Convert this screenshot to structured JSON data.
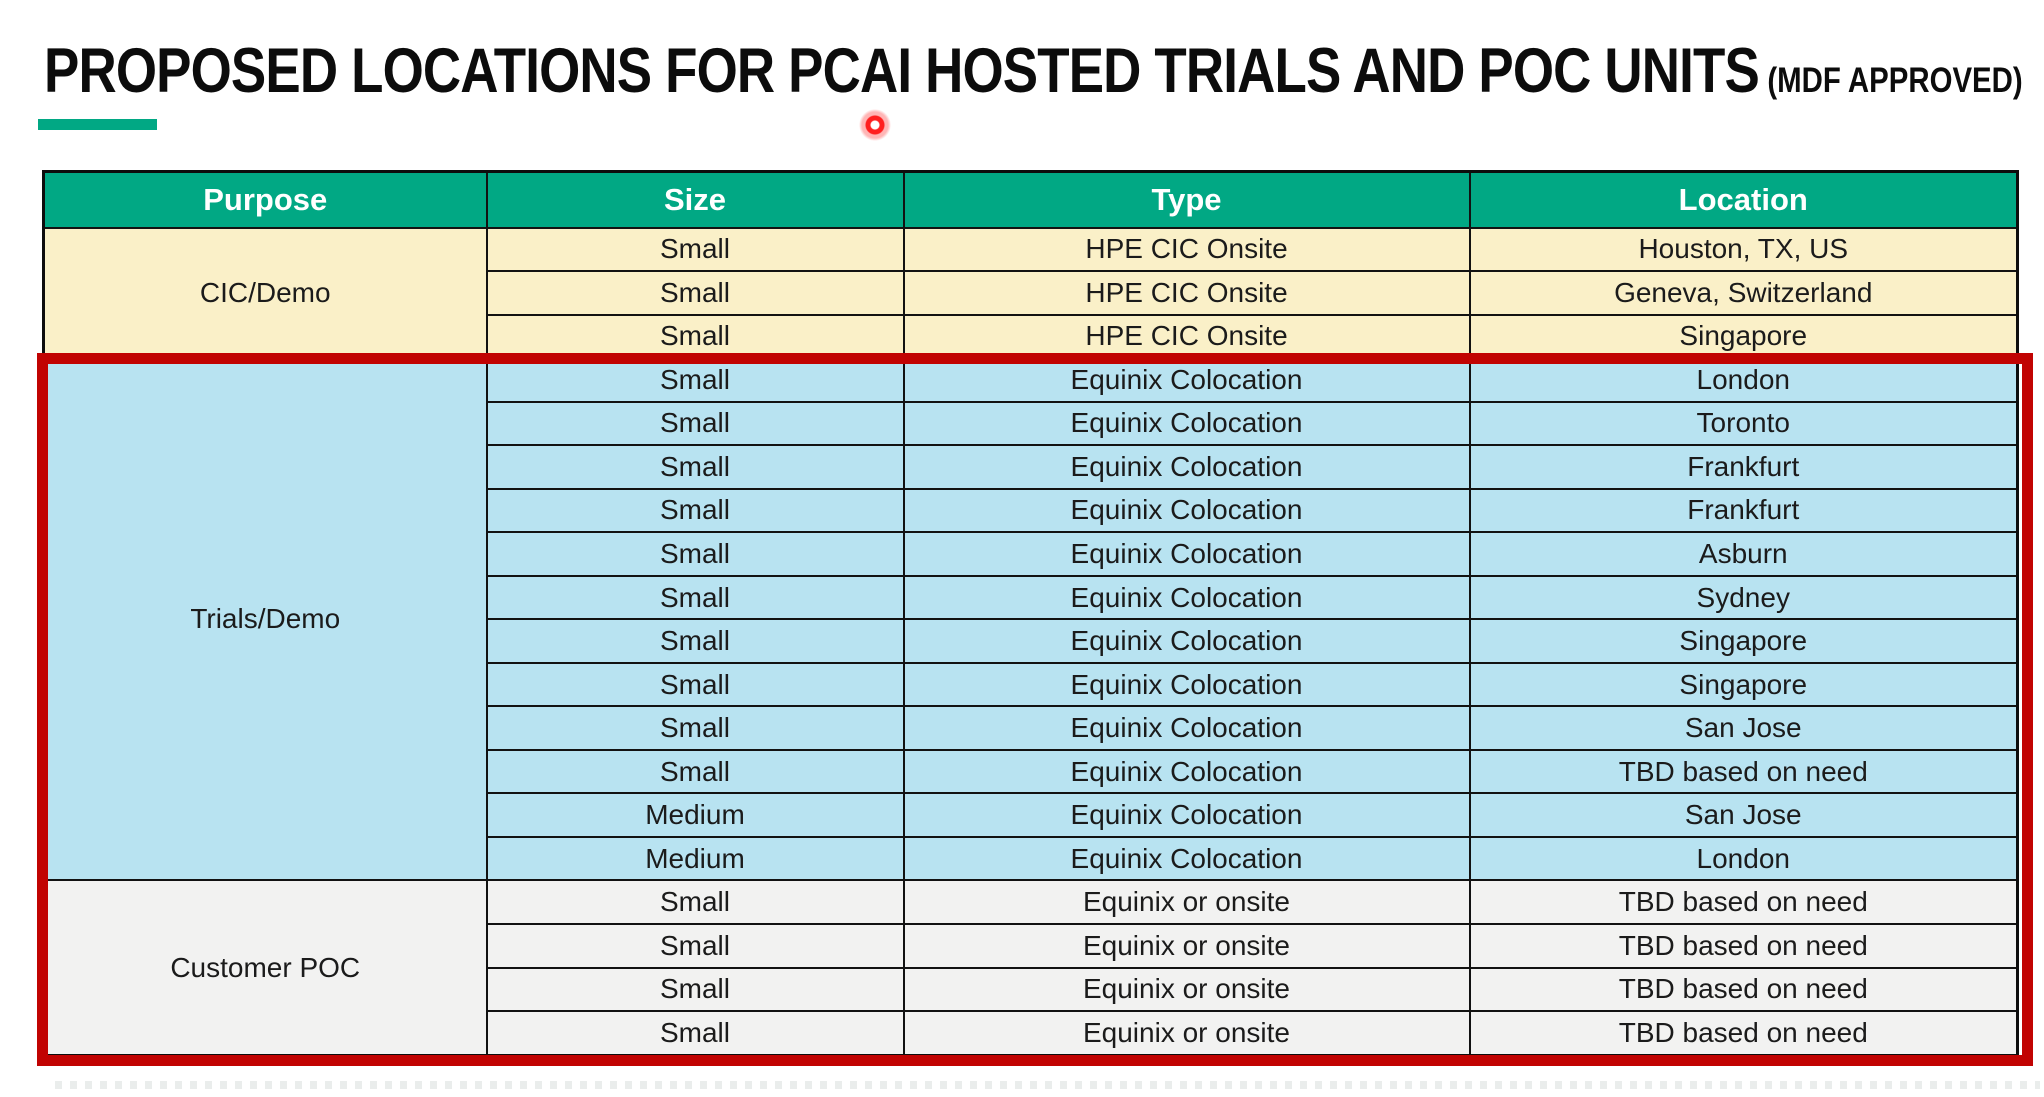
{
  "title": {
    "main": "PROPOSED LOCATIONS FOR PCAI HOSTED TRIALS AND POC UNITS",
    "suffix": "(MDF APPROVED)"
  },
  "table": {
    "headers": [
      "Purpose",
      "Size",
      "Type",
      "Location"
    ],
    "sections": [
      {
        "purpose": "CIC/Demo",
        "theme": "yellow",
        "rows": [
          [
            "Small",
            "HPE CIC Onsite",
            "Houston, TX, US"
          ],
          [
            "Small",
            "HPE CIC Onsite",
            "Geneva, Switzerland"
          ],
          [
            "Small",
            "HPE CIC Onsite",
            "Singapore"
          ]
        ]
      },
      {
        "purpose": "Trials/Demo",
        "theme": "blue",
        "rows": [
          [
            "Small",
            "Equinix Colocation",
            "London"
          ],
          [
            "Small",
            "Equinix Colocation",
            "Toronto"
          ],
          [
            "Small",
            "Equinix Colocation",
            "Frankfurt"
          ],
          [
            "Small",
            "Equinix Colocation",
            "Frankfurt"
          ],
          [
            "Small",
            "Equinix Colocation",
            "Asburn"
          ],
          [
            "Small",
            "Equinix Colocation",
            "Sydney"
          ],
          [
            "Small",
            "Equinix Colocation",
            "Singapore"
          ],
          [
            "Small",
            "Equinix Colocation",
            "Singapore"
          ],
          [
            "Small",
            "Equinix Colocation",
            "San Jose"
          ],
          [
            "Small",
            "Equinix Colocation",
            "TBD based on need"
          ],
          [
            "Medium",
            "Equinix Colocation",
            "San Jose"
          ],
          [
            "Medium",
            "Equinix Colocation",
            "London"
          ]
        ]
      },
      {
        "purpose": "Customer POC",
        "theme": "gray",
        "rows": [
          [
            "Small",
            "Equinix or onsite",
            "TBD based on need"
          ],
          [
            "Small",
            "Equinix or onsite",
            "TBD based on need"
          ],
          [
            "Small",
            "Equinix or onsite",
            "TBD based on need"
          ],
          [
            "Small",
            "Equinix or onsite",
            "TBD based on need"
          ]
        ]
      }
    ]
  },
  "colors": {
    "header_teal": "#01A884",
    "accent_bar_teal": "#01A884",
    "section_yellow": "#FAF0C8",
    "section_blue": "#B8E3F1",
    "section_gray": "#F2F2F1",
    "highlight_red": "#C10302",
    "laser_dot_red": "#FF1F1F",
    "dotted_line_gray": "#EAEDEC"
  }
}
